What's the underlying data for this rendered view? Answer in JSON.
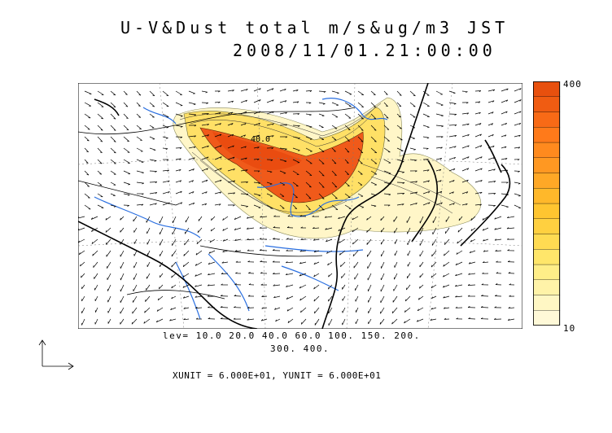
{
  "title": {
    "line1": "U-V&Dust total m/s&ug/m3 JST",
    "line2": "2008/11/01.21:00:00"
  },
  "contour_levels_label": {
    "line1": "lev= 10.0 20.0 40.0 60.0 100. 150. 200.",
    "line2": "300. 400."
  },
  "units_label": "XUNIT = 6.000E+01, YUNIT = 6.000E+01",
  "map_annotation": "40.0",
  "colorbar": {
    "max_label": "400",
    "min_label": "10",
    "colors": [
      "#fff9d8",
      "#fff7c4",
      "#fff3a8",
      "#ffee88",
      "#ffe66a",
      "#ffdb52",
      "#ffd040",
      "#ffc530",
      "#ffb82a",
      "#ffa826",
      "#ff9822",
      "#ff8a1e",
      "#ff7a1a",
      "#f86a16",
      "#f05c12",
      "#e8500e"
    ]
  },
  "colors": {
    "rivers": "#2a6fe0",
    "coast": "#000000",
    "dust_low": "#fff6c8",
    "dust_high": "#f05a1a"
  },
  "icons": {
    "reference_vector": "reference-vector-icon"
  }
}
